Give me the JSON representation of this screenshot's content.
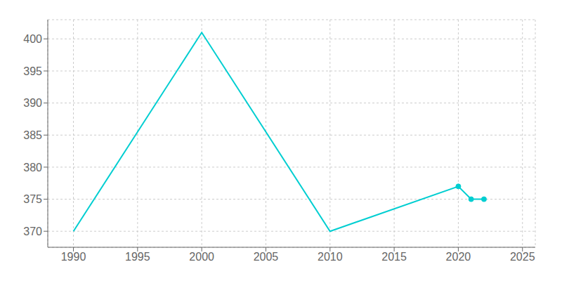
{
  "chart_data": {
    "type": "line",
    "x": [
      1990,
      2000,
      2010,
      2020,
      2021,
      2022
    ],
    "series": [
      {
        "color": "#00CED1",
        "values": [
          370,
          401,
          370,
          377,
          375,
          375
        ],
        "marker": "none"
      },
      {
        "color": "#00CED1",
        "values": [
          null,
          null,
          null,
          377,
          375,
          375
        ],
        "type": "scatter",
        "marker": "circle"
      }
    ],
    "xlim": [
      1988,
      2026
    ],
    "ylim": [
      367.5,
      403
    ],
    "xticks": [
      1990,
      1995,
      2000,
      2005,
      2010,
      2015,
      2020,
      2025
    ],
    "yticks": [
      370,
      375,
      380,
      385,
      390,
      395,
      400
    ],
    "grid": true
  }
}
